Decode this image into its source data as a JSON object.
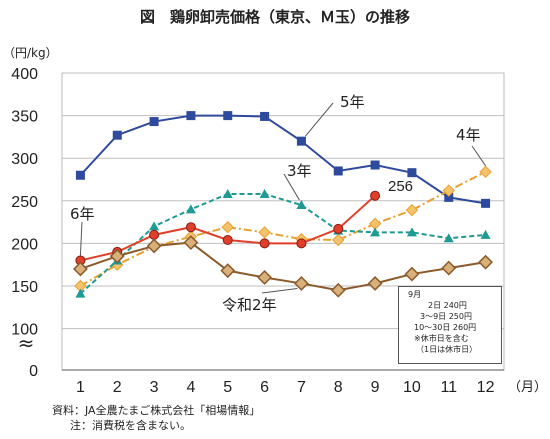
{
  "chart_data": {
    "type": "line",
    "title": "図　鶏卵卸売価格（東京、Ｍ玉）の推移",
    "ylabel": "（円/kg）",
    "xlabel": "（月）",
    "ylim": [
      0,
      400
    ],
    "yticks": [
      0,
      100,
      150,
      200,
      250,
      300,
      350,
      400
    ],
    "ybreak_symbol": "≈",
    "categories": [
      "1",
      "2",
      "3",
      "4",
      "5",
      "6",
      "7",
      "8",
      "9",
      "10",
      "11",
      "12"
    ],
    "series": [
      {
        "name": "5年",
        "color": "#2e4a9c",
        "marker": "square",
        "dash": "",
        "values": [
          280,
          327,
          343,
          350,
          350,
          349,
          320,
          285,
          292,
          283,
          254,
          247
        ]
      },
      {
        "name": "4年",
        "color": "#e8a030",
        "marker": "diamond",
        "dash": "8,3,2,3",
        "values": [
          150,
          175,
          196,
          208,
          219,
          213,
          205,
          204,
          223,
          239,
          262,
          284
        ]
      },
      {
        "name": "3年",
        "color": "#1f9a92",
        "marker": "triangle",
        "dash": "5,3",
        "values": [
          141,
          180,
          220,
          240,
          258,
          258,
          245,
          215,
          213,
          213,
          206,
          210
        ]
      },
      {
        "name": "6年",
        "color": "#e0402a",
        "marker": "circle",
        "dash": "",
        "values": [
          180,
          190,
          210,
          219,
          204,
          200,
          200,
          217,
          256,
          null,
          null,
          null
        ]
      },
      {
        "name": "令和2年",
        "color": "#8b5a2b",
        "marker": "x",
        "dash": "",
        "values": [
          170,
          185,
          197,
          201,
          168,
          160,
          153,
          145,
          153,
          164,
          171,
          178
        ]
      }
    ],
    "annotations": {
      "last_value_label": "256"
    }
  },
  "note_box": {
    "lines": [
      "9月",
      "2日 240円",
      "3～9日 250円",
      "10～30日 260円",
      "※休市日を含む",
      "（1日は休市日）"
    ]
  },
  "source": {
    "line1": "資料：JA全農たまご株式会社「相場情報」",
    "line2": "注：消費税を含まない。"
  }
}
